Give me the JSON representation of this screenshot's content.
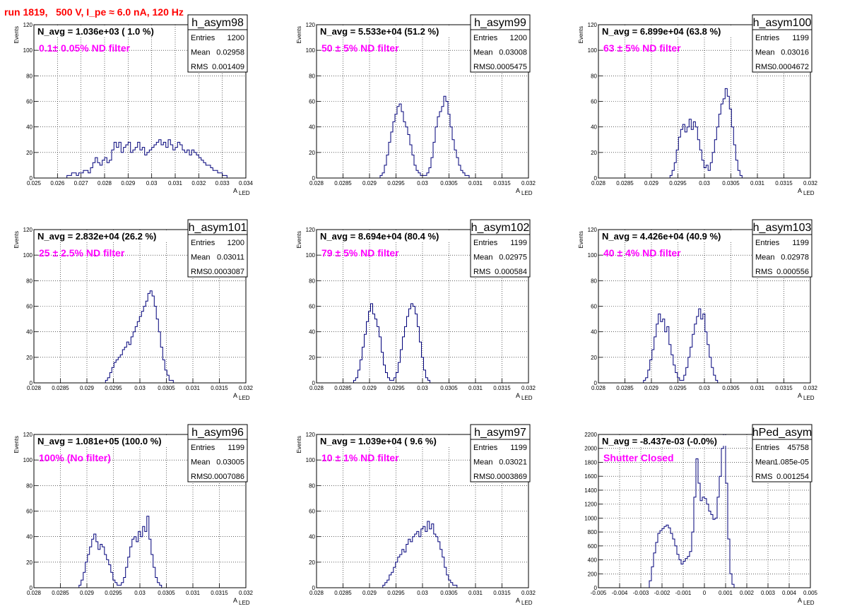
{
  "header": {
    "run_title": "run 1819,   500 V, I_pe ≈ 6.0 nA, 120 Hz"
  },
  "colors": {
    "hist_line": "#00007a",
    "filter_text": "#ff00ff",
    "title_text": "#ff0000",
    "grid": "#000000"
  },
  "chart_data": [
    {
      "type": "bar",
      "name": "h_asym98",
      "n_avg": "N_avg = 1.036e+03 ( 1.0 %)",
      "filter": "0.1± 0.05% ND filter",
      "stats": [
        [
          "Entries",
          "1200"
        ],
        [
          "Mean",
          "0.02958"
        ],
        [
          "RMS",
          "0.001409"
        ]
      ],
      "xlabel": "A",
      "xlabel_sub": "LED",
      "ylabel": "Events",
      "xlim": [
        0.025,
        0.034
      ],
      "ylim": [
        0,
        120
      ],
      "xticks": [
        0.025,
        0.026,
        0.027,
        0.028,
        0.029,
        0.03,
        0.031,
        0.032,
        0.033,
        0.034
      ],
      "xtick_labels": [
        "0.025",
        "0.026",
        "0.027",
        "0.028",
        "0.029",
        "0.03",
        "0.031",
        "0.032",
        "0.033",
        "0.034"
      ],
      "yticks": [
        0,
        20,
        40,
        60,
        80,
        100,
        120
      ],
      "bins": {
        "start": 0.0255,
        "width": 0.0001,
        "values": [
          0,
          0,
          0,
          0,
          0,
          0,
          0,
          0,
          0,
          2,
          2,
          4,
          4,
          2,
          4,
          4,
          6,
          6,
          4,
          8,
          12,
          16,
          12,
          10,
          14,
          16,
          12,
          14,
          22,
          28,
          24,
          28,
          20,
          24,
          26,
          28,
          20,
          22,
          24,
          28,
          22,
          24,
          18,
          20,
          22,
          24,
          26,
          28,
          30,
          26,
          28,
          24,
          30,
          26,
          22,
          24,
          28,
          26,
          22,
          20,
          22,
          18,
          22,
          20,
          18,
          16,
          14,
          12,
          10,
          10,
          8,
          6,
          6,
          4,
          4,
          2,
          2,
          0,
          0,
          0,
          0,
          0,
          0,
          0,
          0
        ]
      }
    },
    {
      "type": "bar",
      "name": "h_asym99",
      "n_avg": "N_avg = 5.533e+04 (51.2 %)",
      "filter": "50 ± 5% ND filter",
      "stats": [
        [
          "Entries",
          "1200"
        ],
        [
          "Mean",
          "0.03008"
        ],
        [
          "RMS",
          "0.0005475"
        ]
      ],
      "xlabel": "A",
      "xlabel_sub": "LED",
      "ylabel": "Events",
      "xlim": [
        0.028,
        0.032
      ],
      "ylim": [
        0,
        120
      ],
      "xticks": [
        0.028,
        0.0285,
        0.029,
        0.0295,
        0.03,
        0.0305,
        0.031,
        0.0315,
        0.032
      ],
      "xtick_labels": [
        "0.028",
        "0.0285",
        "0.029",
        "0.0295",
        "0.03",
        "0.0305",
        "0.031",
        "0.0315",
        "0.032"
      ],
      "yticks": [
        0,
        20,
        40,
        60,
        80,
        100,
        120
      ],
      "bins": {
        "start": 0.0292,
        "width": 4e-05,
        "values": [
          2,
          4,
          10,
          18,
          28,
          36,
          44,
          50,
          56,
          58,
          52,
          44,
          40,
          34,
          26,
          18,
          10,
          6,
          4,
          2,
          2,
          2,
          4,
          8,
          16,
          28,
          40,
          48,
          52,
          56,
          64,
          60,
          50,
          40,
          30,
          22,
          16,
          10,
          6,
          4,
          2,
          2,
          0
        ]
      }
    },
    {
      "type": "bar",
      "name": "h_asym100",
      "n_avg": "N_avg = 6.899e+04 (63.8 %)",
      "filter": "63 ± 5% ND filter",
      "stats": [
        [
          "Entries",
          "1199"
        ],
        [
          "Mean",
          "0.03016"
        ],
        [
          "RMS",
          "0.0004672"
        ]
      ],
      "xlabel": "A",
      "xlabel_sub": "LED",
      "ylabel": "Events",
      "xlim": [
        0.028,
        0.032
      ],
      "ylim": [
        0,
        120
      ],
      "xticks": [
        0.028,
        0.0285,
        0.029,
        0.0295,
        0.03,
        0.0305,
        0.031,
        0.0315,
        0.032
      ],
      "xtick_labels": [
        "0.028",
        "0.0285",
        "0.029",
        "0.0295",
        "0.03",
        "0.0305",
        "0.031",
        "0.0315",
        "0.032"
      ],
      "yticks": [
        0,
        20,
        40,
        60,
        80,
        100,
        120
      ],
      "bins": {
        "start": 0.02935,
        "width": 4e-05,
        "values": [
          2,
          6,
          12,
          22,
          32,
          38,
          42,
          36,
          40,
          46,
          38,
          44,
          40,
          30,
          22,
          14,
          8,
          10,
          6,
          12,
          20,
          30,
          40,
          50,
          58,
          62,
          70,
          64,
          54,
          40,
          26,
          14,
          6,
          2,
          0
        ]
      }
    },
    {
      "type": "bar",
      "name": "h_asym101",
      "n_avg": "N_avg = 2.832e+04 (26.2 %)",
      "filter": "25 ± 2.5% ND filter",
      "stats": [
        [
          "Entries",
          "1200"
        ],
        [
          "Mean",
          "0.03011"
        ],
        [
          "RMS",
          "0.0003087"
        ]
      ],
      "xlabel": "A",
      "xlabel_sub": "LED",
      "ylabel": "Events",
      "xlim": [
        0.028,
        0.032
      ],
      "ylim": [
        0,
        120
      ],
      "xticks": [
        0.028,
        0.0285,
        0.029,
        0.0295,
        0.03,
        0.0305,
        0.031,
        0.0315,
        0.032
      ],
      "xtick_labels": [
        "0.028",
        "0.0285",
        "0.029",
        "0.0295",
        "0.03",
        "0.0305",
        "0.031",
        "0.0315",
        "0.032"
      ],
      "yticks": [
        0,
        20,
        40,
        60,
        80,
        100,
        120
      ],
      "bins": {
        "start": 0.02935,
        "width": 4e-05,
        "values": [
          2,
          4,
          8,
          12,
          16,
          18,
          20,
          22,
          26,
          28,
          32,
          30,
          36,
          40,
          44,
          48,
          52,
          56,
          60,
          64,
          70,
          72,
          68,
          60,
          50,
          40,
          28,
          18,
          10,
          6,
          2,
          2,
          0
        ]
      }
    },
    {
      "type": "bar",
      "name": "h_asym102",
      "n_avg": "N_avg = 8.694e+04 (80.4 %)",
      "filter": "79 ± 5% ND filter",
      "stats": [
        [
          "Entries",
          "1199"
        ],
        [
          "Mean",
          "0.02975"
        ],
        [
          "RMS",
          "0.000584"
        ]
      ],
      "xlabel": "A",
      "xlabel_sub": "LED",
      "ylabel": "Events",
      "xlim": [
        0.028,
        0.032
      ],
      "ylim": [
        0,
        120
      ],
      "xticks": [
        0.028,
        0.0285,
        0.029,
        0.0295,
        0.03,
        0.0305,
        0.031,
        0.0315,
        0.032
      ],
      "xtick_labels": [
        "0.028",
        "0.0285",
        "0.029",
        "0.0295",
        "0.03",
        "0.0305",
        "0.031",
        "0.0315",
        "0.032"
      ],
      "yticks": [
        0,
        20,
        40,
        60,
        80,
        100,
        120
      ],
      "bins": {
        "start": 0.0287,
        "width": 4e-05,
        "values": [
          2,
          4,
          10,
          18,
          28,
          38,
          48,
          56,
          62,
          54,
          50,
          44,
          36,
          24,
          14,
          8,
          4,
          2,
          2,
          4,
          8,
          16,
          26,
          36,
          44,
          52,
          58,
          62,
          60,
          54,
          44,
          32,
          20,
          10,
          4,
          2,
          0
        ]
      }
    },
    {
      "type": "bar",
      "name": "h_asym103",
      "n_avg": "N_avg = 4.426e+04 (40.9 %)",
      "filter": "40 ± 4% ND filter",
      "stats": [
        [
          "Entries",
          "1199"
        ],
        [
          "Mean",
          "0.02978"
        ],
        [
          "RMS",
          "0.000556"
        ]
      ],
      "xlabel": "A",
      "xlabel_sub": "LED",
      "ylabel": "Events",
      "xlim": [
        0.028,
        0.032
      ],
      "ylim": [
        0,
        120
      ],
      "xticks": [
        0.028,
        0.0285,
        0.029,
        0.0295,
        0.03,
        0.0305,
        0.031,
        0.0315,
        0.032
      ],
      "xtick_labels": [
        "0.028",
        "0.0285",
        "0.029",
        "0.0295",
        "0.03",
        "0.0305",
        "0.031",
        "0.0315",
        "0.032"
      ],
      "yticks": [
        0,
        20,
        40,
        60,
        80,
        100,
        120
      ],
      "bins": {
        "start": 0.02885,
        "width": 4e-05,
        "values": [
          2,
          4,
          10,
          18,
          26,
          36,
          46,
          54,
          48,
          50,
          40,
          44,
          30,
          22,
          14,
          8,
          4,
          2,
          2,
          6,
          12,
          20,
          28,
          38,
          46,
          52,
          58,
          50,
          54,
          40,
          30,
          20,
          12,
          6,
          2,
          0
        ]
      }
    },
    {
      "type": "bar",
      "name": "h_asym96",
      "n_avg": "N_avg = 1.081e+05 (100.0 %)",
      "filter": "100% (No filter)",
      "stats": [
        [
          "Entries",
          "1199"
        ],
        [
          "Mean",
          "0.03005"
        ],
        [
          "RMS",
          "0.0007086"
        ]
      ],
      "xlabel": "A",
      "xlabel_sub": "LED",
      "ylabel": "Events",
      "xlim": [
        0.028,
        0.032
      ],
      "ylim": [
        0,
        120
      ],
      "xticks": [
        0.028,
        0.0285,
        0.029,
        0.0295,
        0.03,
        0.0305,
        0.031,
        0.0315,
        0.032
      ],
      "xtick_labels": [
        "0.028",
        "0.0285",
        "0.029",
        "0.0295",
        "0.03",
        "0.0305",
        "0.031",
        "0.0315",
        "0.032"
      ],
      "yticks": [
        0,
        20,
        40,
        60,
        80,
        100,
        120
      ],
      "bins": {
        "start": 0.02885,
        "width": 4e-05,
        "values": [
          2,
          6,
          12,
          20,
          26,
          32,
          38,
          42,
          36,
          30,
          34,
          32,
          26,
          22,
          18,
          12,
          6,
          4,
          2,
          2,
          4,
          8,
          16,
          24,
          32,
          38,
          40,
          36,
          44,
          40,
          48,
          44,
          56,
          38,
          26,
          16,
          8,
          4,
          2,
          0
        ]
      }
    },
    {
      "type": "bar",
      "name": "h_asym97",
      "n_avg": "N_avg = 1.039e+04 ( 9.6 %)",
      "filter": "10 ± 1% ND filter",
      "stats": [
        [
          "Entries",
          "1199"
        ],
        [
          "Mean",
          "0.03021"
        ],
        [
          "RMS",
          "0.0003869"
        ]
      ],
      "xlabel": "A",
      "xlabel_sub": "LED",
      "ylabel": "Events",
      "xlim": [
        0.028,
        0.032
      ],
      "ylim": [
        0,
        120
      ],
      "xticks": [
        0.028,
        0.0285,
        0.029,
        0.0295,
        0.03,
        0.0305,
        0.031,
        0.0315,
        0.032
      ],
      "xtick_labels": [
        "0.028",
        "0.0285",
        "0.029",
        "0.0295",
        "0.03",
        "0.0305",
        "0.031",
        "0.0315",
        "0.032"
      ],
      "yticks": [
        0,
        20,
        40,
        60,
        80,
        100,
        120
      ],
      "bins": {
        "start": 0.02925,
        "width": 4e-05,
        "values": [
          2,
          4,
          6,
          10,
          12,
          16,
          20,
          24,
          26,
          30,
          28,
          34,
          38,
          36,
          40,
          42,
          44,
          40,
          46,
          48,
          44,
          52,
          46,
          50,
          42,
          40,
          36,
          30,
          24,
          16,
          10,
          6,
          4,
          2,
          2,
          0
        ]
      }
    },
    {
      "type": "bar",
      "name": "hPed_asym",
      "n_avg": "N_avg = -8.437e-03 (-0.0%)",
      "filter": "Shutter Closed",
      "stats": [
        [
          "Entries",
          "45758"
        ],
        [
          "Mean",
          "1.085e-05"
        ],
        [
          "RMS",
          "0.001254"
        ]
      ],
      "xlabel": "A",
      "xlabel_sub": "LED",
      "ylabel": "",
      "xlim": [
        -0.005,
        0.005
      ],
      "ylim": [
        0,
        2200
      ],
      "xticks": [
        -0.005,
        -0.004,
        -0.003,
        -0.002,
        -0.001,
        0,
        0.001,
        0.002,
        0.003,
        0.004,
        0.005
      ],
      "xtick_labels": [
        "-0.005",
        "-0.004",
        "-0.003",
        "-0.002",
        "-0.001",
        "0",
        "0.001",
        "0.002",
        "0.003",
        "0.004",
        "0.005"
      ],
      "yticks": [
        0,
        200,
        400,
        600,
        800,
        1000,
        1200,
        1400,
        1600,
        1800,
        2000,
        2200
      ],
      "bins": {
        "start": -0.0026,
        "width": 0.0001,
        "values": [
          100,
          300,
          500,
          650,
          780,
          820,
          850,
          880,
          900,
          860,
          780,
          700,
          600,
          480,
          400,
          340,
          380,
          420,
          450,
          520,
          800,
          1300,
          1850,
          1500,
          1250,
          1300,
          1280,
          1200,
          1100,
          1050,
          980,
          1000,
          1300,
          1600,
          2000,
          2200,
          1500,
          700,
          200,
          50
        ]
      }
    }
  ]
}
